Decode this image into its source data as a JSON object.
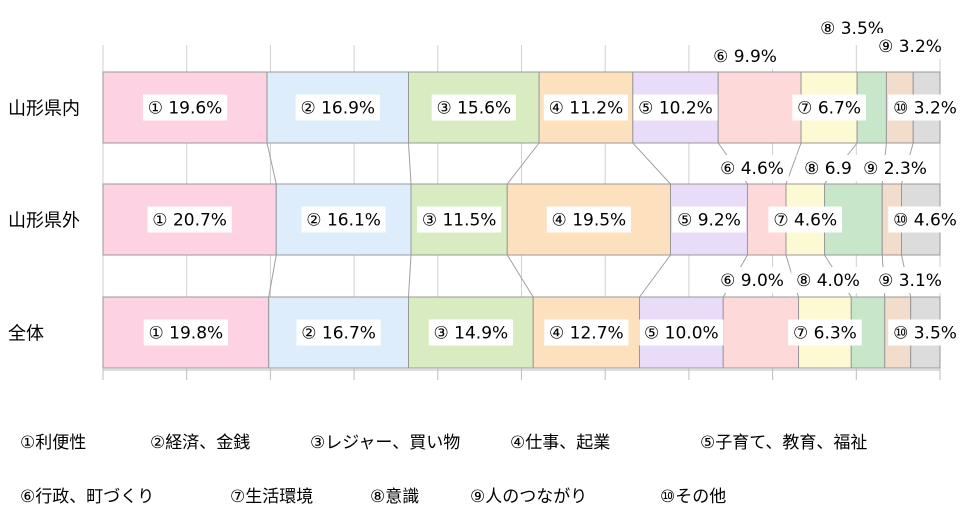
{
  "chart_data": {
    "type": "bar",
    "orientation": "horizontal",
    "stacked": "100%",
    "categories": [
      "山形県内",
      "山形県外",
      "全体"
    ],
    "series": [
      {
        "name": "①利便性",
        "marker": "①",
        "color": "#fdd3e3",
        "values": [
          19.6,
          20.7,
          19.8
        ]
      },
      {
        "name": "②経済、金銭",
        "marker": "②",
        "color": "#deedfb",
        "values": [
          16.9,
          16.1,
          16.7
        ]
      },
      {
        "name": "③レジャー、買い物",
        "marker": "③",
        "color": "#d9ecc1",
        "values": [
          15.6,
          11.5,
          14.9
        ]
      },
      {
        "name": "④仕事、起業",
        "marker": "④",
        "color": "#fde0bd",
        "values": [
          11.2,
          19.5,
          12.7
        ]
      },
      {
        "name": "⑤子育て、教育、福祉",
        "marker": "⑤",
        "color": "#e9dcf8",
        "values": [
          10.2,
          9.2,
          10.0
        ]
      },
      {
        "name": "⑥行政、町づくり",
        "marker": "⑥",
        "color": "#fdd9d9",
        "values": [
          9.9,
          4.6,
          9.0
        ]
      },
      {
        "name": "⑦生活環境",
        "marker": "⑦",
        "color": "#fdf9d2",
        "values": [
          6.7,
          4.6,
          6.3
        ]
      },
      {
        "name": "⑧意識",
        "marker": "⑧",
        "color": "#c8e6c9",
        "values": [
          3.5,
          6.9,
          4.0
        ]
      },
      {
        "name": "⑨人のつながり",
        "marker": "⑨",
        "color": "#f2dccb",
        "values": [
          3.2,
          2.3,
          3.1
        ]
      },
      {
        "name": "⑩その他",
        "marker": "⑩",
        "color": "#dcdcdc",
        "values": [
          3.2,
          4.6,
          3.5
        ]
      }
    ],
    "data_labels": [
      [
        "① 19.6%",
        "② 16.9%",
        "③ 15.6%",
        "④ 11.2%",
        "⑤ 10.2%",
        "⑥ 9.9%",
        "⑦ 6.7%",
        "⑧ 3.5%",
        "⑨ 3.2%",
        "⑩ 3.2%"
      ],
      [
        "① 20.7%",
        "② 16.1%",
        "③ 11.5%",
        "④ 19.5%",
        "⑤ 9.2%",
        "⑥ 4.6%",
        "⑦ 4.6%",
        "⑧ 6.9",
        "⑨ 2.3%",
        "⑩ 4.6%"
      ],
      [
        "① 19.8%",
        "② 16.7%",
        "③ 14.9%",
        "④ 12.7%",
        "⑤ 10.0%",
        "⑥ 9.0%",
        "⑦ 6.3%",
        "⑧ 4.0%",
        "⑨ 3.1%",
        "⑩ 3.5%"
      ]
    ],
    "xlim": [
      0,
      100
    ],
    "grid": true,
    "legend_position": "bottom",
    "series_lines": true
  }
}
